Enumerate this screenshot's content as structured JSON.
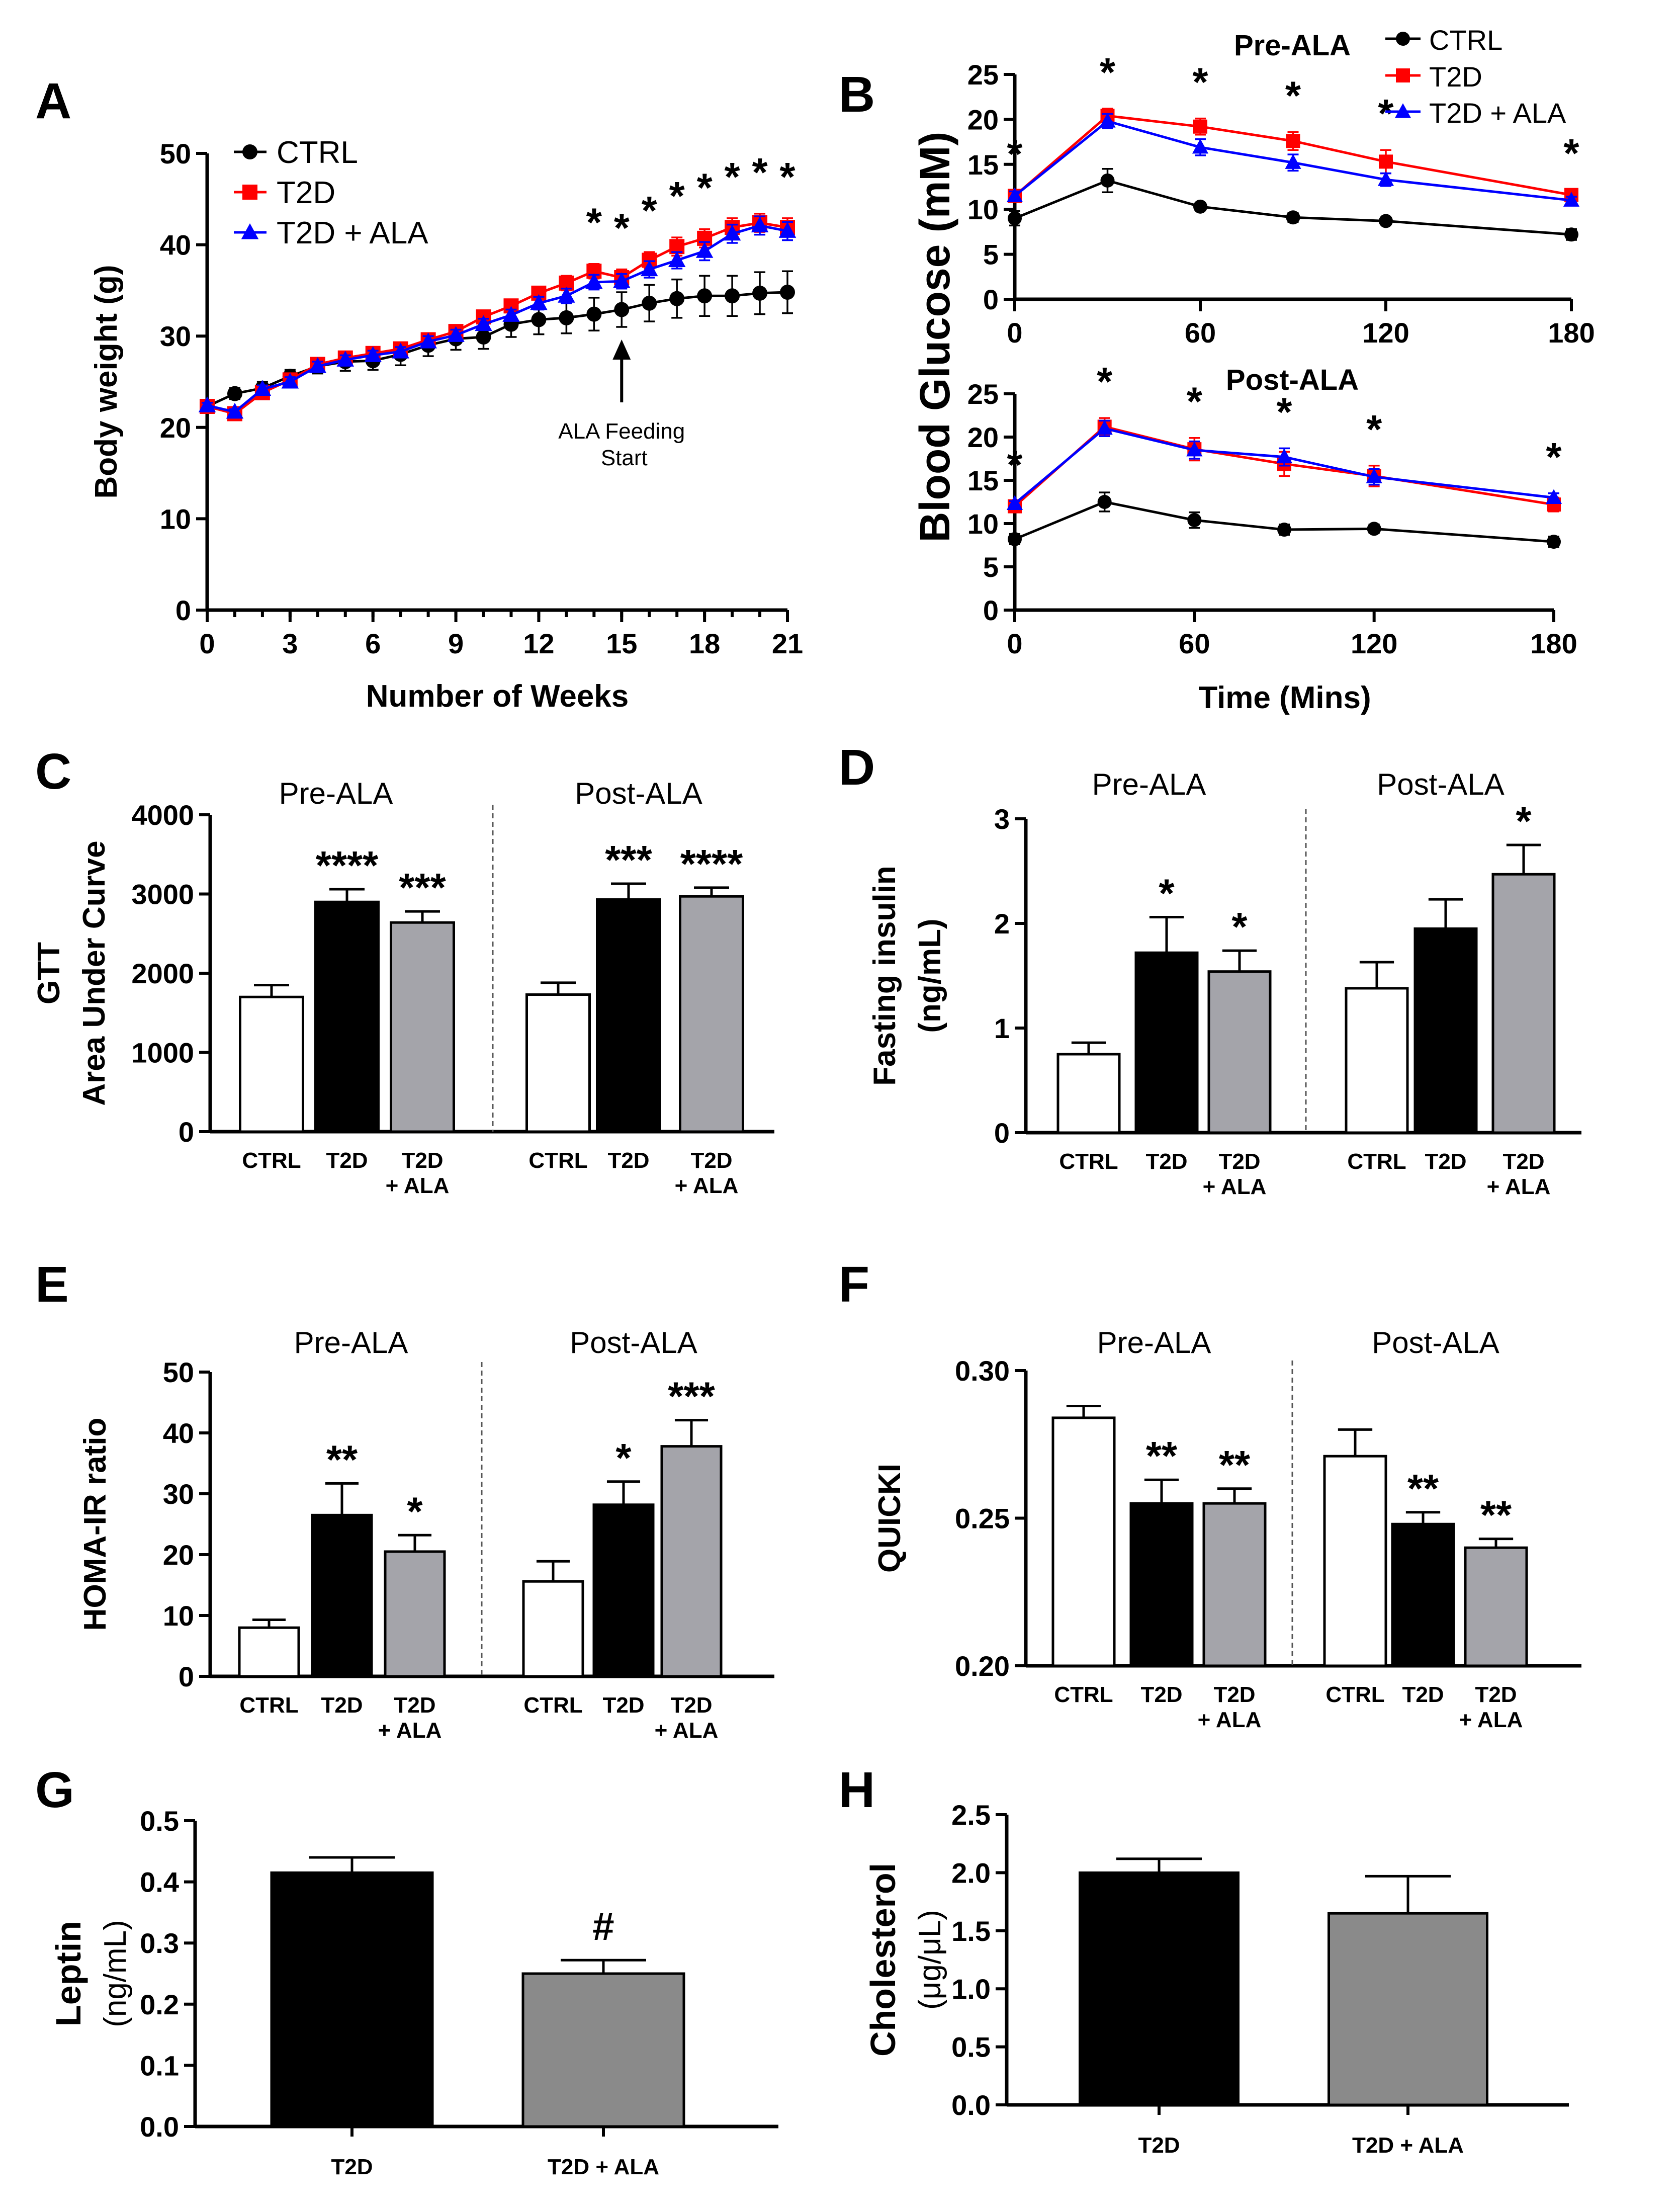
{
  "colors": {
    "ctrl": "#000000",
    "t2d": "#ff0000",
    "ala": "#0000ff",
    "bar_ctrl": "#ffffff",
    "bar_t2d": "#000000",
    "bar_ala_light": "#a4a4aa",
    "bar_ala_dark": "#8a8a8a"
  },
  "chart_data": [
    {
      "id": "A",
      "type": "line",
      "panel_label": "A",
      "xlabel": "Number of Weeks",
      "ylabel": "Body weight (g)",
      "xlim": [
        0,
        21
      ],
      "ylim": [
        0,
        50
      ],
      "xticks": [
        "0",
        "3",
        "6",
        "9",
        "12",
        "15",
        "18",
        "21"
      ],
      "yticks": [
        "0",
        "10",
        "20",
        "30",
        "40",
        "50"
      ],
      "legend": [
        "CTRL",
        "T2D",
        "T2D + ALA"
      ],
      "annotation": {
        "line1": "ALA Feeding",
        "line2": "Start",
        "x": 15
      },
      "x": [
        0,
        1,
        2,
        3,
        4,
        5,
        6,
        7,
        8,
        9,
        10,
        11,
        12,
        13,
        14,
        15,
        16,
        17,
        18,
        19,
        20,
        21
      ],
      "series": [
        {
          "name": "CTRL",
          "values": [
            22.3,
            23.7,
            24.3,
            25.6,
            26.7,
            27.2,
            27.3,
            28.0,
            29.0,
            29.7,
            29.9,
            31.3,
            31.8,
            32.0,
            32.4,
            32.9,
            33.6,
            34.1,
            34.4,
            34.4,
            34.7,
            34.8
          ],
          "err": [
            0.6,
            0.6,
            0.7,
            0.7,
            0.8,
            1.0,
            1.0,
            1.2,
            1.2,
            1.2,
            1.3,
            1.4,
            1.6,
            1.7,
            1.8,
            1.9,
            2.0,
            2.1,
            2.2,
            2.2,
            2.3,
            2.3
          ]
        },
        {
          "name": "T2D",
          "values": [
            22.3,
            21.5,
            23.8,
            25.2,
            26.9,
            27.6,
            28.1,
            28.6,
            29.6,
            30.5,
            32.1,
            33.3,
            34.7,
            35.8,
            37.1,
            36.4,
            38.3,
            39.8,
            40.7,
            41.9,
            42.4,
            41.9
          ],
          "err": [
            0.3,
            0.4,
            0.4,
            0.5,
            0.5,
            0.5,
            0.5,
            0.5,
            0.6,
            0.6,
            0.6,
            0.7,
            0.7,
            0.8,
            0.8,
            0.9,
            0.9,
            1.0,
            1.0,
            1.0,
            1.0,
            1.0
          ]
        },
        {
          "name": "T2D + ALA",
          "values": [
            22.4,
            21.7,
            24.2,
            25.0,
            26.7,
            27.4,
            27.9,
            28.3,
            29.4,
            30.1,
            31.3,
            32.3,
            33.6,
            34.4,
            35.9,
            36.0,
            37.3,
            38.3,
            39.3,
            41.2,
            42.1,
            41.5
          ],
          "err": [
            0.3,
            0.3,
            0.4,
            0.5,
            0.5,
            0.5,
            0.5,
            0.5,
            0.6,
            0.6,
            0.6,
            0.6,
            0.7,
            0.8,
            0.8,
            0.8,
            0.9,
            0.9,
            1.0,
            1.0,
            1.0,
            1.0
          ]
        }
      ],
      "star_x": [
        14,
        15,
        16,
        17,
        18,
        19,
        20,
        21
      ]
    },
    {
      "id": "B1",
      "type": "line",
      "panel_label": "B",
      "title": "Pre-ALA",
      "xlabel": "Time (Mins)",
      "ylabel": "Blood Glucose (mM)",
      "xlim": [
        0,
        180
      ],
      "ylim": [
        0,
        25
      ],
      "xticks": [
        "0",
        "60",
        "120",
        "180"
      ],
      "yticks": [
        "0",
        "5",
        "10",
        "15",
        "20",
        "25"
      ],
      "legend": [
        "CTRL",
        "T2D",
        "T2D + ALA"
      ],
      "x": [
        0,
        30,
        60,
        90,
        120,
        180
      ],
      "series": [
        {
          "name": "CTRL",
          "values": [
            9.0,
            13.2,
            10.3,
            9.1,
            8.7,
            7.2
          ],
          "err": [
            0.8,
            1.3,
            0.4,
            0.5,
            0.3,
            0.6
          ]
        },
        {
          "name": "T2D",
          "values": [
            11.5,
            20.4,
            19.2,
            17.6,
            15.3,
            11.6
          ],
          "err": [
            0.6,
            0.8,
            0.9,
            1.0,
            1.3,
            0.6
          ]
        },
        {
          "name": "T2D + ALA",
          "values": [
            11.5,
            19.8,
            16.9,
            15.2,
            13.3,
            11.0
          ],
          "err": [
            0.5,
            0.8,
            0.9,
            0.9,
            0.7,
            0.4
          ]
        }
      ],
      "star_x": [
        0,
        30,
        60,
        90,
        120,
        180
      ]
    },
    {
      "id": "B2",
      "type": "line",
      "title": "Post-ALA",
      "xlim": [
        0,
        180
      ],
      "ylim": [
        0,
        25
      ],
      "xticks": [
        "0",
        "60",
        "120",
        "180"
      ],
      "yticks": [
        "0",
        "5",
        "10",
        "15",
        "20",
        "25"
      ],
      "x": [
        0,
        30,
        60,
        90,
        120,
        180
      ],
      "series": [
        {
          "name": "CTRL",
          "values": [
            8.2,
            12.5,
            10.4,
            9.3,
            9.4,
            7.9
          ],
          "err": [
            0.6,
            1.1,
            0.9,
            0.6,
            0.5,
            0.6
          ]
        },
        {
          "name": "T2D",
          "values": [
            12.0,
            21.2,
            18.6,
            16.9,
            15.5,
            12.2
          ],
          "err": [
            0.4,
            1.0,
            1.3,
            1.4,
            1.2,
            0.8
          ]
        },
        {
          "name": "T2D + ALA",
          "values": [
            12.3,
            21.0,
            18.5,
            17.7,
            15.4,
            13.0
          ],
          "err": [
            0.3,
            0.9,
            1.0,
            1.0,
            0.9,
            0.5
          ]
        }
      ],
      "star_x": [
        0,
        30,
        60,
        90,
        120,
        180
      ]
    },
    {
      "id": "C",
      "type": "bar",
      "panel_label": "C",
      "ylabel_line1": "GTT",
      "ylabel_line2": "Area Under Curve",
      "ylim": [
        0,
        4000
      ],
      "yticks": [
        "0",
        "1000",
        "2000",
        "3000",
        "4000"
      ],
      "groups": [
        "Pre-ALA",
        "Post-ALA"
      ],
      "categories": [
        "CTRL",
        "T2D",
        "T2D + ALA"
      ],
      "series": [
        {
          "group": "Pre-ALA",
          "values": [
            1700,
            2900,
            2640
          ],
          "err": [
            150,
            160,
            140
          ],
          "stars": [
            "",
            "****",
            "***"
          ]
        },
        {
          "group": "Post-ALA",
          "values": [
            1730,
            2930,
            2970
          ],
          "err": [
            150,
            200,
            110
          ],
          "stars": [
            "",
            "***",
            "****"
          ]
        }
      ]
    },
    {
      "id": "D",
      "type": "bar",
      "panel_label": "D",
      "ylabel_line1": "Fasting insulin",
      "ylabel_line2": "(ng/mL)",
      "ylim": [
        0,
        3
      ],
      "yticks": [
        "0",
        "1",
        "2",
        "3"
      ],
      "groups": [
        "Pre-ALA",
        "Post-ALA"
      ],
      "categories": [
        "CTRL",
        "T2D",
        "T2D + ALA"
      ],
      "series": [
        {
          "group": "Pre-ALA",
          "values": [
            0.75,
            1.72,
            1.54
          ],
          "err": [
            0.11,
            0.34,
            0.2
          ],
          "stars": [
            "",
            "*",
            "*"
          ]
        },
        {
          "group": "Post-ALA",
          "values": [
            1.38,
            1.95,
            2.47
          ],
          "err": [
            0.25,
            0.28,
            0.28
          ],
          "stars": [
            "",
            "",
            "*"
          ]
        }
      ]
    },
    {
      "id": "E",
      "type": "bar",
      "panel_label": "E",
      "ylabel_line1": "HOMA-IR ratio",
      "ylim": [
        0,
        50
      ],
      "yticks": [
        "0",
        "10",
        "20",
        "30",
        "40",
        "50"
      ],
      "groups": [
        "Pre-ALA",
        "Post-ALA"
      ],
      "categories": [
        "CTRL",
        "T2D",
        "T2D + ALA"
      ],
      "series": [
        {
          "group": "Pre-ALA",
          "values": [
            8.0,
            26.5,
            20.5
          ],
          "err": [
            1.3,
            5.2,
            2.7
          ],
          "stars": [
            "",
            "**",
            "*"
          ]
        },
        {
          "group": "Post-ALA",
          "values": [
            15.6,
            28.2,
            37.8
          ],
          "err": [
            3.3,
            3.8,
            4.3
          ],
          "stars": [
            "",
            "*",
            "***"
          ]
        }
      ]
    },
    {
      "id": "F",
      "type": "bar",
      "panel_label": "F",
      "ylabel_line1": "QUICKI",
      "ylim": [
        0.2,
        0.3
      ],
      "yticks": [
        "0.20",
        "0.25",
        "0.30"
      ],
      "groups": [
        "Pre-ALA",
        "Post-ALA"
      ],
      "categories": [
        "CTRL",
        "T2D",
        "T2D + ALA"
      ],
      "series": [
        {
          "group": "Pre-ALA",
          "values": [
            0.284,
            0.255,
            0.255
          ],
          "err": [
            0.004,
            0.008,
            0.005
          ],
          "stars": [
            "",
            "**",
            "**"
          ]
        },
        {
          "group": "Post-ALA",
          "values": [
            0.271,
            0.248,
            0.24
          ],
          "err": [
            0.009,
            0.004,
            0.003
          ],
          "stars": [
            "",
            "**",
            "**"
          ]
        }
      ]
    },
    {
      "id": "G",
      "type": "bar",
      "panel_label": "G",
      "ylabel_line1": "Leptin",
      "ylabel_line2": "(ng/mL)",
      "ylim": [
        0,
        0.5
      ],
      "yticks": [
        "0.0",
        "0.1",
        "0.2",
        "0.3",
        "0.4",
        "0.5"
      ],
      "categories": [
        "T2D",
        "T2D + ALA"
      ],
      "values": [
        0.415,
        0.25
      ],
      "err": [
        0.025,
        0.022
      ],
      "stars": [
        "",
        "#"
      ]
    },
    {
      "id": "H",
      "type": "bar",
      "panel_label": "H",
      "ylabel_line1": "Cholesterol",
      "ylabel_line2": "(μg/μL)",
      "ylim": [
        0,
        2.5
      ],
      "yticks": [
        "0.0",
        "0.5",
        "1.0",
        "1.5",
        "2.0",
        "2.5"
      ],
      "categories": [
        "T2D",
        "T2D + ALA"
      ],
      "values": [
        2.0,
        1.65
      ],
      "err": [
        0.12,
        0.32
      ],
      "stars": [
        "",
        ""
      ]
    }
  ]
}
